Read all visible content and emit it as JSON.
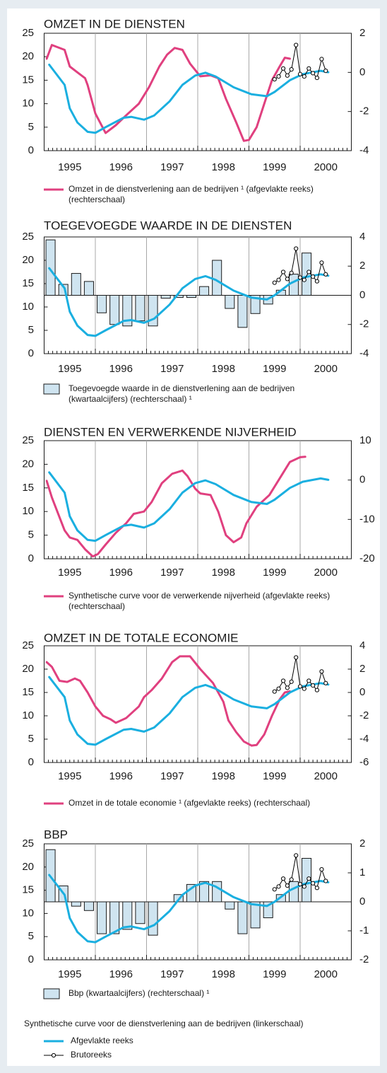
{
  "chart_data": {
    "synthetic": {
      "title": "Synthetische curve voor de dienstverlening aan de bedrijven (linkerschaal)",
      "series": [
        {
          "name": "Afgevlakte reeks",
          "color": "#1aafe0",
          "x": [
            1995.1,
            1995.4,
            1995.5,
            1995.65,
            1995.85,
            1996.0,
            1996.2,
            1996.55,
            1996.7,
            1996.95,
            1997.15,
            1997.45,
            1997.7,
            1997.95,
            1998.15,
            1998.35,
            1998.7,
            1999.05,
            1999.35,
            1999.5,
            1999.8,
            2000.05,
            2000.4,
            2000.55
          ],
          "values": [
            18.3,
            14,
            9,
            6,
            4,
            3.8,
            5,
            7,
            7.2,
            6.6,
            7.5,
            10.5,
            14,
            16,
            16.6,
            15.8,
            13.5,
            12,
            11.6,
            12.5,
            15,
            16.3,
            17,
            16.7
          ]
        },
        {
          "name": "Brutoreeks",
          "color": "#000000",
          "x": [
            1999.5,
            1999.58,
            1999.67,
            1999.75,
            1999.83,
            1999.92,
            2000.0,
            2000.08,
            2000.17,
            2000.25,
            2000.33,
            2000.42,
            2000.5
          ],
          "values": [
            15.2,
            15.8,
            17.5,
            16,
            17.3,
            22.5,
            16.3,
            15.8,
            17.5,
            16.5,
            15.5,
            19.5,
            17
          ]
        }
      ]
    },
    "panels": [
      {
        "type": "line",
        "title": "OMZET IN DE DIENSTEN",
        "brutoreeks": true,
        "xlim": [
          1995,
          2001
        ],
        "xticks": [
          {
            "value": 1995.5,
            "label": "1995"
          },
          {
            "value": 1996.5,
            "label": "1996"
          },
          {
            "value": 1997.5,
            "label": "1997"
          },
          {
            "value": 1998.5,
            "label": "1998"
          },
          {
            "value": 1999.5,
            "label": "1999"
          },
          {
            "value": 2000.5,
            "label": "2000"
          }
        ],
        "xgrid": [
          1996,
          1997,
          1998,
          1999,
          2000
        ],
        "ylim": [
          0,
          25
        ],
        "yticks": [
          0,
          5,
          10,
          15,
          20,
          25
        ],
        "y2lim": [
          -4,
          2
        ],
        "y2ticks": [
          2,
          0,
          -2,
          -4
        ],
        "series": [
          {
            "name": [
              "Omzet in de dienstverlening aan de bedrijven ¹ (afgevlakte reeks)",
              "(rechterschaal)"
            ],
            "color": "#e0407f",
            "axis": "y2",
            "x": [
              1995.05,
              1995.15,
              1995.4,
              1995.5,
              1995.65,
              1995.8,
              1995.85,
              1996.0,
              1996.2,
              1996.4,
              1996.6,
              1996.85,
              1997.05,
              1997.25,
              1997.4,
              1997.55,
              1997.7,
              1997.85,
              1998.05,
              1998.25,
              1998.4,
              1998.55,
              1998.75,
              1998.9,
              1999.0,
              1999.15,
              1999.3,
              1999.45,
              1999.6,
              1999.7,
              1999.8
            ],
            "values": [
              0.7,
              1.4,
              1.15,
              0.3,
              0,
              -0.3,
              -0.65,
              -2.1,
              -3.1,
              -2.7,
              -2.2,
              -1.6,
              -0.75,
              0.3,
              0.9,
              1.25,
              1.15,
              0.45,
              -0.2,
              -0.15,
              -0.3,
              -1.35,
              -2.55,
              -3.5,
              -3.45,
              -2.8,
              -1.6,
              -0.4,
              0.3,
              0.75,
              0.7
            ]
          }
        ]
      },
      {
        "type": "bar",
        "title": "TOEGEVOEGDE WAARDE IN DE DIENSTEN",
        "brutoreeks": true,
        "xlim": [
          1995,
          2001
        ],
        "xticks": [
          {
            "value": 1995.5,
            "label": "1995"
          },
          {
            "value": 1996.5,
            "label": "1996"
          },
          {
            "value": 1997.5,
            "label": "1997"
          },
          {
            "value": 1998.5,
            "label": "1998"
          },
          {
            "value": 1999.5,
            "label": "1999"
          },
          {
            "value": 2000.5,
            "label": "2000"
          }
        ],
        "xgrid": [
          1996,
          1997,
          1998,
          1999,
          2000
        ],
        "ylim": [
          0,
          25
        ],
        "yticks": [
          0,
          5,
          10,
          15,
          20,
          25
        ],
        "y2lim": [
          -4,
          4
        ],
        "y2ticks": [
          4,
          2,
          0,
          -2,
          -4
        ],
        "series": [
          {
            "name": [
              "Toegevoegde waarde in de dienstverlening aan de bedrijven",
              "(kwartaalcijfers) (rechterschaal) ¹"
            ],
            "color": "#cfe4f0",
            "axis": "y2",
            "x": [
              1995.125,
              1995.375,
              1995.625,
              1995.875,
              1996.125,
              1996.375,
              1996.625,
              1996.875,
              1997.125,
              1997.375,
              1997.625,
              1997.875,
              1998.125,
              1998.375,
              1998.625,
              1998.875,
              1999.125,
              1999.375,
              1999.625,
              1999.875,
              2000.125
            ],
            "values": [
              3.8,
              0.75,
              1.5,
              0.95,
              -1.2,
              -2,
              -2.1,
              -1.75,
              -2.1,
              -0.2,
              -0.15,
              -0.15,
              0.6,
              2.4,
              -0.9,
              -2.2,
              -1.25,
              -0.6,
              0.35,
              1.45,
              2.9
            ]
          }
        ]
      },
      {
        "type": "line",
        "title": "DIENSTEN EN VERWERKENDE NIJVERHEID",
        "brutoreeks": false,
        "xlim": [
          1995,
          2001
        ],
        "xticks": [
          {
            "value": 1995.5,
            "label": "1995"
          },
          {
            "value": 1996.5,
            "label": "1996"
          },
          {
            "value": 1997.5,
            "label": "1997"
          },
          {
            "value": 1998.5,
            "label": "1998"
          },
          {
            "value": 1999.5,
            "label": "1999"
          },
          {
            "value": 2000.5,
            "label": "2000"
          }
        ],
        "xgrid": [
          1996,
          1997,
          1998,
          1999,
          2000
        ],
        "ylim": [
          0,
          25
        ],
        "yticks": [
          0,
          5,
          10,
          15,
          20,
          25
        ],
        "y2lim": [
          -20,
          10
        ],
        "y2ticks": [
          10,
          0,
          -10,
          -20
        ],
        "series": [
          {
            "name": [
              "Synthetische curve voor de verwerkende nijverheid (afgevlakte reeks)",
              "(rechterschaal)"
            ],
            "color": "#e0407f",
            "axis": "y2",
            "x": [
              1995.05,
              1995.15,
              1995.4,
              1995.5,
              1995.65,
              1995.8,
              1995.95,
              1996.05,
              1996.2,
              1996.4,
              1996.6,
              1996.75,
              1996.95,
              1997.1,
              1997.3,
              1997.5,
              1997.7,
              1997.8,
              1997.95,
              1998.05,
              1998.25,
              1998.4,
              1998.55,
              1998.7,
              1998.85,
              1998.95,
              1999.15,
              1999.4,
              1999.6,
              1999.8,
              2000.0,
              2000.1
            ],
            "values": [
              -0.2,
              -4.4,
              -12.8,
              -14.6,
              -15.2,
              -17.6,
              -19.4,
              -18.8,
              -16.4,
              -13.4,
              -11,
              -8.6,
              -8,
              -5.6,
              -0.8,
              1.6,
              2.4,
              1,
              -2.2,
              -3.4,
              -3.8,
              -8,
              -14,
              -15.8,
              -14.6,
              -11,
              -6.8,
              -3.8,
              0.4,
              4.6,
              5.8,
              5.9
            ]
          }
        ]
      },
      {
        "type": "line",
        "title": "OMZET IN DE TOTALE ECONOMIE",
        "brutoreeks": true,
        "xlim": [
          1995,
          2001
        ],
        "xticks": [
          {
            "value": 1995.5,
            "label": "1995"
          },
          {
            "value": 1996.5,
            "label": "1996"
          },
          {
            "value": 1997.5,
            "label": "1997"
          },
          {
            "value": 1998.5,
            "label": "1998"
          },
          {
            "value": 1999.5,
            "label": "1999"
          },
          {
            "value": 2000.5,
            "label": "2000"
          }
        ],
        "xgrid": [
          1996,
          1997,
          1998,
          1999,
          2000
        ],
        "ylim": [
          0,
          25
        ],
        "yticks": [
          0,
          5,
          10,
          15,
          20,
          25
        ],
        "y2lim": [
          -6,
          4
        ],
        "y2ticks": [
          4,
          2,
          0,
          -2,
          -4,
          -6
        ],
        "series": [
          {
            "name": [
              "Omzet in de totale economie ¹ (afgevlakte reeks) (rechterschaal)"
            ],
            "color": "#e0407f",
            "axis": "y2",
            "x": [
              1995.05,
              1995.15,
              1995.3,
              1995.45,
              1995.6,
              1995.7,
              1995.85,
              1996.0,
              1996.15,
              1996.3,
              1996.4,
              1996.6,
              1996.85,
              1996.95,
              1997.1,
              1997.3,
              1997.5,
              1997.65,
              1997.85,
              1998.05,
              1998.3,
              1998.5,
              1998.6,
              1998.75,
              1998.9,
              1999.05,
              1999.15,
              1999.3,
              1999.45,
              1999.6,
              1999.7,
              1999.8
            ],
            "values": [
              2.6,
              2.2,
              1,
              0.9,
              1.2,
              1,
              0,
              -1.2,
              -2,
              -2.3,
              -2.6,
              -2.2,
              -1.2,
              -0.4,
              0.2,
              1.2,
              2.6,
              3.1,
              3.1,
              2,
              0.8,
              -0.8,
              -2.4,
              -3.4,
              -4.2,
              -4.55,
              -4.5,
              -3.6,
              -2,
              -0.6,
              0,
              0.1
            ]
          }
        ]
      },
      {
        "type": "bar",
        "title": "BBP",
        "brutoreeks": true,
        "xlim": [
          1995,
          2001
        ],
        "xticks": [
          {
            "value": 1995.5,
            "label": "1995"
          },
          {
            "value": 1996.5,
            "label": "1996"
          },
          {
            "value": 1997.5,
            "label": "1997"
          },
          {
            "value": 1998.5,
            "label": "1998"
          },
          {
            "value": 1999.5,
            "label": "1999"
          },
          {
            "value": 2000.5,
            "label": "2000"
          }
        ],
        "xgrid": [
          1996,
          1997,
          1998,
          1999,
          2000
        ],
        "ylim": [
          0,
          25
        ],
        "yticks": [
          0,
          5,
          10,
          15,
          20,
          25
        ],
        "y2lim": [
          -2,
          2
        ],
        "y2ticks": [
          2,
          1,
          0,
          -1,
          -2
        ],
        "series": [
          {
            "name": [
              "Bbp (kwartaalcijfers) (rechterschaal) ¹"
            ],
            "color": "#cfe4f0",
            "axis": "y2",
            "x": [
              1995.125,
              1995.375,
              1995.625,
              1995.875,
              1996.125,
              1996.375,
              1996.625,
              1996.875,
              1997.125,
              1997.375,
              1997.625,
              1997.875,
              1998.125,
              1998.375,
              1998.625,
              1998.875,
              1999.125,
              1999.375,
              1999.625,
              1999.875,
              2000.125
            ],
            "values": [
              1.8,
              0.55,
              -0.15,
              -0.3,
              -1.1,
              -1.1,
              -0.95,
              -0.75,
              -1.15,
              0,
              0.25,
              0.6,
              0.7,
              0.7,
              -0.25,
              -1.1,
              -0.9,
              -0.55,
              0.25,
              0.7,
              1.5
            ]
          }
        ]
      }
    ]
  }
}
